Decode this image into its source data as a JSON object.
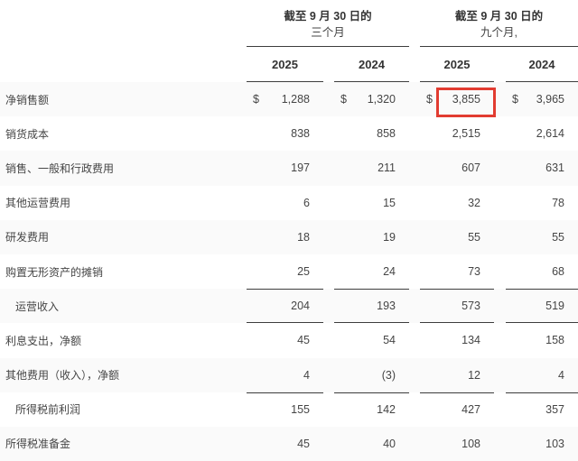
{
  "table": {
    "groups": [
      {
        "title": "截至 9 月 30 日的",
        "subtitle": "三个月"
      },
      {
        "title": "截至 9 月 30 日的",
        "subtitle": "九个月,"
      }
    ],
    "year_headers": [
      "2025",
      "2024",
      "2025",
      "2024"
    ],
    "currency_symbol": "$",
    "rows": [
      {
        "label": "净销售额",
        "indent": false,
        "show_currency": true,
        "values": [
          "1,288",
          "1,320",
          "3,855",
          "3,965"
        ]
      },
      {
        "label": "销货成本",
        "indent": false,
        "values": [
          "838",
          "858",
          "2,515",
          "2,614"
        ]
      },
      {
        "label": "销售、一般和行政费用",
        "indent": false,
        "values": [
          "197",
          "211",
          "607",
          "631"
        ]
      },
      {
        "label": "其他运营费用",
        "indent": false,
        "values": [
          "6",
          "15",
          "32",
          "78"
        ]
      },
      {
        "label": "研发费用",
        "indent": false,
        "values": [
          "18",
          "19",
          "55",
          "55"
        ]
      },
      {
        "label": "购置无形资产的摊销",
        "indent": false,
        "values": [
          "25",
          "24",
          "73",
          "68"
        ]
      },
      {
        "label": "运营收入",
        "indent": true,
        "rule_top": true,
        "rule_bottom": true,
        "values": [
          "204",
          "193",
          "573",
          "519"
        ]
      },
      {
        "label": "利息支出，净额",
        "indent": false,
        "values": [
          "45",
          "54",
          "134",
          "158"
        ]
      },
      {
        "label": "其他费用（收入），净额",
        "indent": false,
        "values": [
          "4",
          "(3)",
          "12",
          "4"
        ]
      },
      {
        "label": "所得税前利润",
        "indent": true,
        "rule_top": true,
        "values": [
          "155",
          "142",
          "427",
          "357"
        ]
      },
      {
        "label": "所得税准备金",
        "indent": false,
        "values": [
          "45",
          "40",
          "108",
          "103"
        ]
      }
    ],
    "highlight": {
      "row_label": "净销售额",
      "column": "九个月, 2025",
      "value": "3,855",
      "color": "#e23c31"
    },
    "colors": {
      "stripe": "#fafafa",
      "rule": "#3d3d3d",
      "text": "#454545"
    }
  }
}
